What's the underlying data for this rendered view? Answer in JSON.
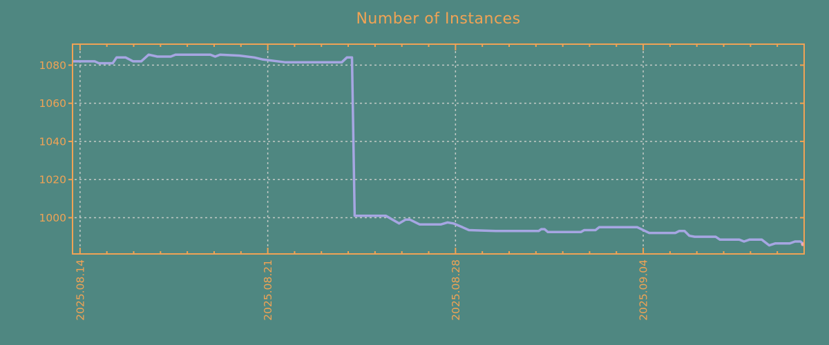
{
  "chart_data": {
    "type": "line",
    "title": "Number of Instances",
    "xlabel": "",
    "ylabel": "",
    "legend": "none",
    "grid": {
      "show": true,
      "style": "dashed",
      "color": "#c3cac6"
    },
    "colors": {
      "background": "#4f8781",
      "axis": "#f0a355",
      "labels": "#f0a355",
      "line": "#a6a6e2",
      "end_marker": "#eeaab8"
    },
    "x_axis": {
      "domain_days": [
        -0.28,
        27.0
      ],
      "origin_label": "2025.08.14",
      "major_ticks": [
        {
          "pos": 0,
          "label": "2025.08.14"
        },
        {
          "pos": 7,
          "label": "2025.08.21"
        },
        {
          "pos": 14,
          "label": "2025.08.28"
        },
        {
          "pos": 21,
          "label": "2025.09.04"
        }
      ],
      "minor_tick_interval_days": 1,
      "label_rotation_deg": -90
    },
    "y_axis": {
      "domain": [
        981,
        1091
      ],
      "ticks": [
        1000,
        1020,
        1040,
        1060,
        1080
      ]
    },
    "series": [
      {
        "name": "instances",
        "color": "#a6a6e2",
        "points": [
          [
            -0.28,
            1082
          ],
          [
            0.55,
            1082
          ],
          [
            0.7,
            1081
          ],
          [
            1.22,
            1081
          ],
          [
            1.36,
            1084
          ],
          [
            1.7,
            1084
          ],
          [
            1.98,
            1082
          ],
          [
            2.28,
            1082
          ],
          [
            2.56,
            1085.5
          ],
          [
            2.88,
            1084.5
          ],
          [
            3.38,
            1084.5
          ],
          [
            3.56,
            1085.5
          ],
          [
            4.86,
            1085.5
          ],
          [
            5.04,
            1084.5
          ],
          [
            5.22,
            1085.5
          ],
          [
            5.95,
            1085
          ],
          [
            6.5,
            1084
          ],
          [
            6.8,
            1083
          ],
          [
            7.66,
            1081.5
          ],
          [
            9.76,
            1081.5
          ],
          [
            9.95,
            1084
          ],
          [
            10.14,
            1084
          ],
          [
            10.24,
            1001
          ],
          [
            11.4,
            1001
          ],
          [
            11.9,
            997
          ],
          [
            12.14,
            999
          ],
          [
            12.3,
            999
          ],
          [
            12.66,
            996.5
          ],
          [
            13.46,
            996.5
          ],
          [
            13.7,
            997.5
          ],
          [
            13.92,
            997
          ],
          [
            14.26,
            995
          ],
          [
            14.5,
            993.5
          ],
          [
            15.5,
            993
          ],
          [
            16.1,
            993
          ],
          [
            17.1,
            993
          ],
          [
            17.2,
            994
          ],
          [
            17.32,
            994
          ],
          [
            17.44,
            992.5
          ],
          [
            18.68,
            992.5
          ],
          [
            18.8,
            993.5
          ],
          [
            19.22,
            993.5
          ],
          [
            19.36,
            995
          ],
          [
            20.78,
            995
          ],
          [
            21.22,
            992
          ],
          [
            22.2,
            992
          ],
          [
            22.34,
            993
          ],
          [
            22.54,
            993
          ],
          [
            22.72,
            990.5
          ],
          [
            22.92,
            990
          ],
          [
            23.7,
            990
          ],
          [
            23.86,
            988.5
          ],
          [
            24.58,
            988.5
          ],
          [
            24.76,
            987.5
          ],
          [
            24.96,
            988.5
          ],
          [
            25.42,
            988.5
          ],
          [
            25.7,
            985.5
          ],
          [
            25.92,
            986.5
          ],
          [
            26.46,
            986.5
          ],
          [
            26.66,
            987.5
          ],
          [
            26.86,
            987.5
          ],
          [
            27.0,
            986
          ]
        ]
      }
    ]
  }
}
